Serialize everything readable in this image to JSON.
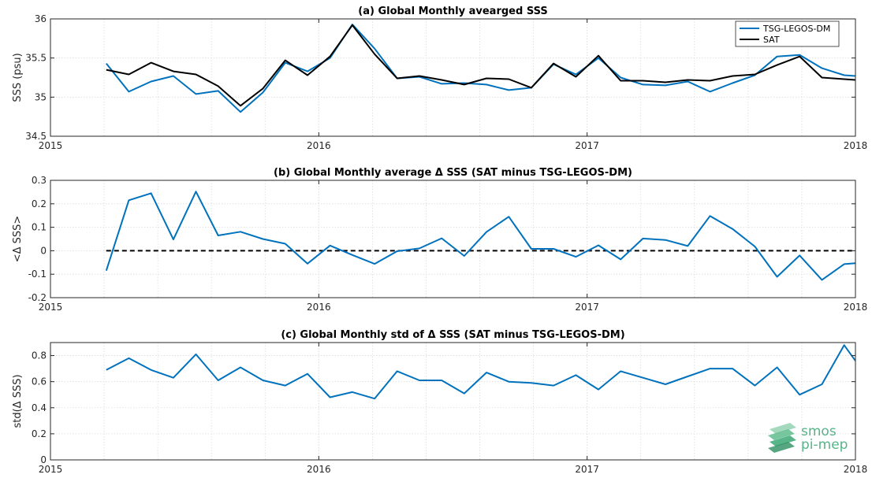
{
  "colors": {
    "tsg": "#0072bd",
    "sat": "#000000",
    "logo": "#3aa874"
  },
  "logo": {
    "line1": "smos",
    "line2": "pi-mep"
  },
  "chart_data": [
    {
      "type": "line",
      "title": "(a) Global Monthly avearged SSS",
      "ylabel": "SSS (psu)",
      "xlabel": "",
      "xlim": [
        2015,
        2018
      ],
      "ylim": [
        34.5,
        36
      ],
      "xticks": [
        2015,
        2016,
        2017,
        2018
      ],
      "xticklabels": [
        "2015",
        "2016",
        "2017",
        "2018"
      ],
      "yticks": [
        34.5,
        35,
        35.5,
        36
      ],
      "yticklabels": [
        "34.5",
        "35",
        "35.5",
        "36"
      ],
      "grid": true,
      "legend": "top-right",
      "x": [
        2015.208,
        2015.292,
        2015.375,
        2015.458,
        2015.542,
        2015.625,
        2015.708,
        2015.792,
        2015.875,
        2015.958,
        2016.042,
        2016.125,
        2016.208,
        2016.292,
        2016.375,
        2016.458,
        2016.542,
        2016.625,
        2016.708,
        2016.792,
        2016.875,
        2016.958,
        2017.042,
        2017.125,
        2017.208,
        2017.292,
        2017.375,
        2017.458,
        2017.542,
        2017.625,
        2017.708,
        2017.792,
        2017.875,
        2017.958,
        2018.0
      ],
      "series": [
        {
          "name": "TSG-LEGOS-DM",
          "color": "#0072bd",
          "values": [
            35.43,
            35.07,
            35.2,
            35.27,
            35.04,
            35.08,
            34.81,
            35.06,
            35.44,
            35.33,
            35.5,
            35.93,
            35.62,
            35.24,
            35.26,
            35.17,
            35.18,
            35.16,
            35.09,
            35.12,
            35.42,
            35.29,
            35.5,
            35.25,
            35.16,
            35.15,
            35.2,
            35.07,
            35.18,
            35.28,
            35.52,
            35.54,
            35.37,
            35.28,
            35.27
          ]
        },
        {
          "name": "SAT",
          "color": "#000000",
          "values": [
            35.35,
            35.29,
            35.44,
            35.33,
            35.29,
            35.14,
            34.89,
            35.11,
            35.47,
            35.28,
            35.52,
            35.92,
            35.55,
            35.24,
            35.27,
            35.22,
            35.16,
            35.24,
            35.23,
            35.12,
            35.43,
            35.26,
            35.53,
            35.21,
            35.21,
            35.19,
            35.22,
            35.21,
            35.27,
            35.29,
            35.41,
            35.52,
            35.25,
            35.23,
            35.22
          ]
        }
      ]
    },
    {
      "type": "line",
      "title": "(b) Global Monthly average Δ SSS (SAT minus TSG-LEGOS-DM)",
      "ylabel": "<Δ SSS>",
      "xlabel": "",
      "xlim": [
        2015,
        2018
      ],
      "ylim": [
        -0.2,
        0.3
      ],
      "xticks": [
        2015,
        2016,
        2017,
        2018
      ],
      "xticklabels": [
        "2015",
        "2016",
        "2017",
        "2018"
      ],
      "yticks": [
        -0.2,
        -0.1,
        0,
        0.1,
        0.2,
        0.3
      ],
      "yticklabels": [
        "-0.2",
        "-0.1",
        "0",
        "0.1",
        "0.2",
        "0.3"
      ],
      "grid": true,
      "reference_line": 0,
      "x": [
        2015.208,
        2015.292,
        2015.375,
        2015.458,
        2015.542,
        2015.625,
        2015.708,
        2015.792,
        2015.875,
        2015.958,
        2016.042,
        2016.125,
        2016.208,
        2016.292,
        2016.375,
        2016.458,
        2016.542,
        2016.625,
        2016.708,
        2016.792,
        2016.875,
        2016.958,
        2017.042,
        2017.125,
        2017.208,
        2017.292,
        2017.375,
        2017.458,
        2017.542,
        2017.625,
        2017.708,
        2017.792,
        2017.875,
        2017.958,
        2018.0
      ],
      "series": [
        {
          "name": "",
          "color": "#0072bd",
          "values": [
            -0.085,
            0.215,
            0.245,
            0.048,
            0.252,
            0.065,
            0.081,
            0.05,
            0.03,
            -0.055,
            0.022,
            -0.018,
            -0.056,
            -0.002,
            0.01,
            0.053,
            -0.022,
            0.08,
            0.145,
            0.008,
            0.008,
            -0.026,
            0.023,
            -0.037,
            0.052,
            0.046,
            0.02,
            0.148,
            0.093,
            0.018,
            -0.111,
            -0.02,
            -0.124,
            -0.057,
            -0.053
          ]
        }
      ]
    },
    {
      "type": "line",
      "title": "(c) Global Monthly std of Δ SSS (SAT minus TSG-LEGOS-DM)",
      "ylabel": "std(Δ SSS)",
      "xlabel": "",
      "xlim": [
        2015,
        2018
      ],
      "ylim": [
        0,
        0.9
      ],
      "xticks": [
        2015,
        2016,
        2017,
        2018
      ],
      "xticklabels": [
        "2015",
        "2016",
        "2017",
        "2018"
      ],
      "yticks": [
        0,
        0.2,
        0.4,
        0.6,
        0.8
      ],
      "yticklabels": [
        "0",
        "0.2",
        "0.4",
        "0.6",
        "0.8"
      ],
      "grid": true,
      "x": [
        2015.208,
        2015.292,
        2015.375,
        2015.458,
        2015.542,
        2015.625,
        2015.708,
        2015.792,
        2015.875,
        2015.958,
        2016.042,
        2016.125,
        2016.208,
        2016.292,
        2016.375,
        2016.458,
        2016.542,
        2016.625,
        2016.708,
        2016.792,
        2016.875,
        2016.958,
        2017.042,
        2017.125,
        2017.208,
        2017.292,
        2017.375,
        2017.458,
        2017.542,
        2017.625,
        2017.708,
        2017.792,
        2017.875,
        2017.958,
        2018.0
      ],
      "series": [
        {
          "name": "",
          "color": "#0072bd",
          "values": [
            0.69,
            0.78,
            0.69,
            0.63,
            0.81,
            0.61,
            0.71,
            0.61,
            0.57,
            0.66,
            0.48,
            0.52,
            0.47,
            0.68,
            0.61,
            0.61,
            0.51,
            0.67,
            0.6,
            0.59,
            0.57,
            0.65,
            0.54,
            0.68,
            0.63,
            0.58,
            0.64,
            0.7,
            0.7,
            0.57,
            0.71,
            0.5,
            0.58,
            0.88,
            0.76
          ]
        }
      ]
    }
  ]
}
